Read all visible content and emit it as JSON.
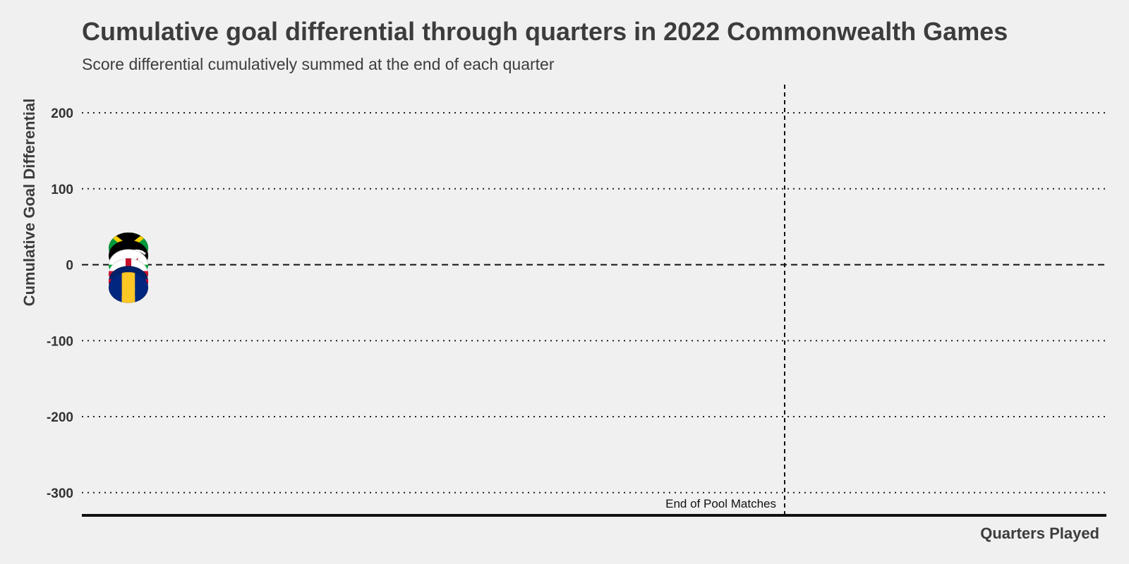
{
  "chart_data": {
    "type": "line",
    "title": "Cumulative goal differential through quarters in 2022 Commonwealth Games",
    "subtitle": "Score differential cumulatively summed at the end of each quarter",
    "xlabel": "Quarters Played",
    "ylabel": "Cumulative Goal Differential",
    "ylim": [
      -330,
      235
    ],
    "yticks": [
      200,
      100,
      0,
      -100,
      -200,
      -300
    ],
    "grid": true,
    "reference_lines": [
      {
        "axis": "y",
        "value": 0,
        "style": "dashed"
      },
      {
        "axis": "x",
        "value": "End of Pool Matches",
        "style": "dashed",
        "label": "End of Pool Matches"
      }
    ],
    "series": [
      {
        "flag": "Jamaica",
        "x": [
          0
        ],
        "y": [
          22
        ],
        "colors": [
          "#f6d000",
          "#000000",
          "#009b3a"
        ]
      },
      {
        "flag": "New Zealand",
        "x": [
          0
        ],
        "y": [
          12
        ],
        "colors": [
          "#000000",
          "#ffffff"
        ]
      },
      {
        "flag": "Wales",
        "x": [
          0
        ],
        "y": [
          0
        ],
        "colors": [
          "#ffffff",
          "#00ab39",
          "#c8102e"
        ]
      },
      {
        "flag": "England",
        "x": [
          0
        ],
        "y": [
          -12
        ],
        "colors": [
          "#ffffff",
          "#c8102e"
        ]
      },
      {
        "flag": "Australia",
        "x": [
          0
        ],
        "y": [
          -22
        ],
        "colors": [
          "#012169",
          "#e4002b",
          "#ffffff"
        ]
      },
      {
        "flag": "Barbados",
        "x": [
          0
        ],
        "y": [
          -30
        ],
        "colors": [
          "#00267f",
          "#ffc726"
        ]
      }
    ]
  }
}
